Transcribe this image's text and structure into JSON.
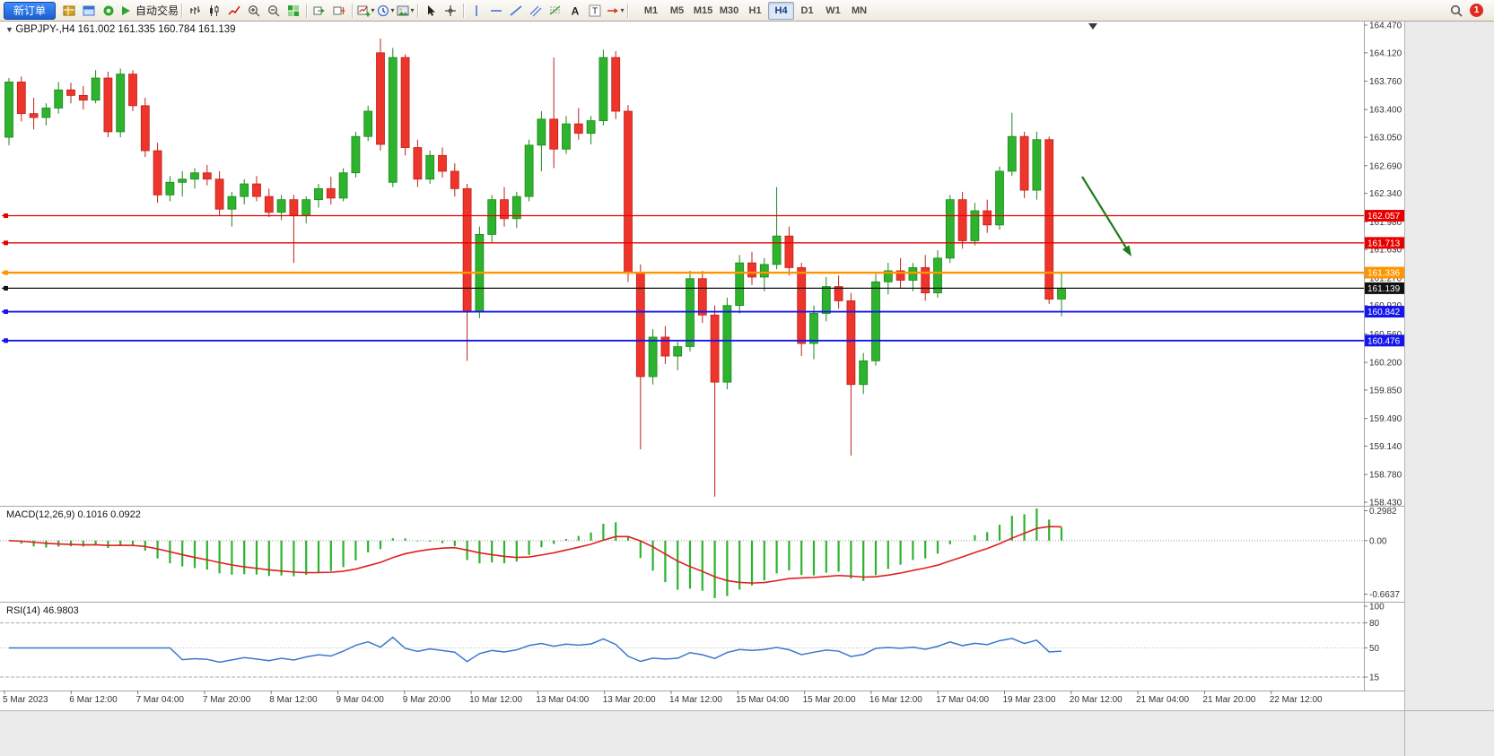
{
  "toolbar": {
    "new_order_label": "新订单",
    "auto_trading_label": "自动交易",
    "notification_count": "1",
    "buttons": [
      {
        "kind": "pill",
        "name": "new-order-button",
        "label": "新订单"
      },
      {
        "kind": "icon",
        "name": "market-watch-button",
        "icon": "market-watch-icon"
      },
      {
        "kind": "icon",
        "name": "data-window-button",
        "icon": "data-window-icon"
      },
      {
        "kind": "icon",
        "name": "navigator-button",
        "icon": "navigator-icon"
      },
      {
        "kind": "icon-label",
        "name": "auto-trading-button",
        "icon": "play-icon",
        "label": "自动交易"
      },
      {
        "kind": "sep"
      },
      {
        "kind": "icon",
        "name": "bar-chart-button",
        "icon": "bar-chart-icon"
      },
      {
        "kind": "icon",
        "name": "candlestick-chart-button",
        "icon": "candlestick-icon"
      },
      {
        "kind": "icon",
        "name": "line-chart-button",
        "icon": "line-chart-icon"
      },
      {
        "kind": "icon",
        "name": "zoom-in-button",
        "icon": "zoom-in-icon"
      },
      {
        "kind": "icon",
        "name": "zoom-out-button",
        "icon": "zoom-out-icon"
      },
      {
        "kind": "icon",
        "name": "tile-windows-button",
        "icon": "tile-windows-icon"
      },
      {
        "kind": "sep"
      },
      {
        "kind": "icon",
        "name": "auto-scroll-button",
        "icon": "auto-scroll-icon"
      },
      {
        "kind": "icon",
        "name": "chart-shift-button",
        "icon": "chart-shift-icon"
      },
      {
        "kind": "sep"
      },
      {
        "kind": "icon",
        "name": "new-chart-button",
        "icon": "chart-plus-icon",
        "caret": true
      },
      {
        "kind": "icon",
        "name": "periods-button",
        "icon": "clock-icon",
        "caret": true
      },
      {
        "kind": "icon",
        "name": "templates-button",
        "icon": "template-icon",
        "caret": true
      },
      {
        "kind": "sep"
      },
      {
        "kind": "icon",
        "name": "cursor-button",
        "icon": "cursor-icon"
      },
      {
        "kind": "icon",
        "name": "crosshair-button",
        "icon": "crosshair-icon"
      },
      {
        "kind": "sep"
      },
      {
        "kind": "icon",
        "name": "vertical-line-button",
        "icon": "vertical-line-icon"
      },
      {
        "kind": "icon",
        "name": "horizontal-line-button",
        "icon": "horizontal-line-icon"
      },
      {
        "kind": "icon",
        "name": "trendline-button",
        "icon": "trendline-icon"
      },
      {
        "kind": "icon",
        "name": "channel-button",
        "icon": "channel-icon"
      },
      {
        "kind": "icon",
        "name": "fibonacci-button",
        "icon": "fibonacci-icon"
      },
      {
        "kind": "icon",
        "name": "text-button",
        "icon": "text-a-icon"
      },
      {
        "kind": "icon",
        "name": "text-label-button",
        "icon": "text-label-icon"
      },
      {
        "kind": "icon",
        "name": "shapes-button",
        "icon": "arrows-icon",
        "caret": true
      },
      {
        "kind": "sep"
      }
    ],
    "timeframes": [
      {
        "label": "M1"
      },
      {
        "label": "M5"
      },
      {
        "label": "M15"
      },
      {
        "label": "M30"
      },
      {
        "label": "H1"
      },
      {
        "label": "H4",
        "active": true
      },
      {
        "label": "D1"
      },
      {
        "label": "W1"
      },
      {
        "label": "MN"
      }
    ]
  },
  "chart": {
    "symbol_header": "GBPJPY-,H4 161.002 161.335 160.784 161.139"
  },
  "chart_data": {
    "type": "candlestick",
    "symbol": "GBPJPY-",
    "timeframe": "H4",
    "ohlc_current": {
      "open": 161.002,
      "high": 161.335,
      "low": 160.784,
      "close": 161.139
    },
    "price_axis_range": [
      158.43,
      164.47
    ],
    "price_axis_labels": [
      "164.470",
      "164.120",
      "163.760",
      "163.400",
      "163.050",
      "162.690",
      "162.340",
      "161.980",
      "161.630",
      "161.270",
      "160.920",
      "160.560",
      "160.200",
      "159.850",
      "159.490",
      "159.140",
      "158.780",
      "158.430"
    ],
    "hlines": [
      {
        "price": 162.057,
        "color": "#e80000",
        "lw": 1.3
      },
      {
        "price": 161.713,
        "color": "#e80000",
        "lw": 1.3
      },
      {
        "price": 161.336,
        "color": "#ff9500",
        "lw": 2.4
      },
      {
        "price": 161.139,
        "color": "#111111",
        "lw": 1.2
      },
      {
        "price": 160.842,
        "color": "#1515ee",
        "lw": 1.8
      },
      {
        "price": 160.476,
        "color": "#1515ee",
        "lw": 1.8
      }
    ],
    "time_axis_labels": [
      "5 Mar 2023",
      "6 Mar 12:00",
      "7 Mar 04:00",
      "7 Mar 20:00",
      "8 Mar 12:00",
      "9 Mar 04:00",
      "9 Mar 20:00",
      "10 Mar 12:00",
      "13 Mar 04:00",
      "13 Mar 20:00",
      "14 Mar 12:00",
      "15 Mar 04:00",
      "15 Mar 20:00",
      "16 Mar 12:00",
      "17 Mar 04:00",
      "19 Mar 23:00",
      "20 Mar 12:00",
      "21 Mar 04:00",
      "21 Mar 20:00",
      "22 Mar 12:00"
    ],
    "candles": [
      [
        163.05,
        163.8,
        162.95,
        163.75
      ],
      [
        163.75,
        163.82,
        163.25,
        163.35
      ],
      [
        163.35,
        163.55,
        163.15,
        163.3
      ],
      [
        163.3,
        163.48,
        163.2,
        163.42
      ],
      [
        163.42,
        163.75,
        163.35,
        163.65
      ],
      [
        163.65,
        163.74,
        163.48,
        163.58
      ],
      [
        163.58,
        163.7,
        163.4,
        163.52
      ],
      [
        163.52,
        163.9,
        163.48,
        163.8
      ],
      [
        163.8,
        163.88,
        163.05,
        163.12
      ],
      [
        163.12,
        163.92,
        163.05,
        163.85
      ],
      [
        163.85,
        163.9,
        163.38,
        163.45
      ],
      [
        163.45,
        163.55,
        162.8,
        162.88
      ],
      [
        162.88,
        162.98,
        162.22,
        162.32
      ],
      [
        162.32,
        162.56,
        162.24,
        162.48
      ],
      [
        162.48,
        162.62,
        162.3,
        162.52
      ],
      [
        162.52,
        162.66,
        162.4,
        162.6
      ],
      [
        162.6,
        162.7,
        162.44,
        162.52
      ],
      [
        162.52,
        162.62,
        162.06,
        162.14
      ],
      [
        162.14,
        162.36,
        161.92,
        162.3
      ],
      [
        162.3,
        162.52,
        162.2,
        162.46
      ],
      [
        162.46,
        162.56,
        162.24,
        162.3
      ],
      [
        162.3,
        162.4,
        162.04,
        162.1
      ],
      [
        162.1,
        162.32,
        162.0,
        162.26
      ],
      [
        162.26,
        162.32,
        161.46,
        162.06
      ],
      [
        162.06,
        162.3,
        161.96,
        162.26
      ],
      [
        162.26,
        162.46,
        162.16,
        162.4
      ],
      [
        162.4,
        162.55,
        162.2,
        162.28
      ],
      [
        162.28,
        162.66,
        162.24,
        162.6
      ],
      [
        162.6,
        163.12,
        162.54,
        163.06
      ],
      [
        163.06,
        163.45,
        163.0,
        163.38
      ],
      [
        164.12,
        164.3,
        162.88,
        162.96
      ],
      [
        162.48,
        164.18,
        162.42,
        164.06
      ],
      [
        164.06,
        164.1,
        162.82,
        162.92
      ],
      [
        162.92,
        163.02,
        162.42,
        162.52
      ],
      [
        162.52,
        162.88,
        162.46,
        162.82
      ],
      [
        162.82,
        162.92,
        162.54,
        162.62
      ],
      [
        162.62,
        162.72,
        162.3,
        162.4
      ],
      [
        162.4,
        162.46,
        160.22,
        160.85
      ],
      [
        160.85,
        161.92,
        160.76,
        161.82
      ],
      [
        161.82,
        162.32,
        161.72,
        162.26
      ],
      [
        162.26,
        162.42,
        161.92,
        162.02
      ],
      [
        162.02,
        162.36,
        161.9,
        162.3
      ],
      [
        162.3,
        163.02,
        162.24,
        162.95
      ],
      [
        162.95,
        163.38,
        162.62,
        163.28
      ],
      [
        163.28,
        164.06,
        162.66,
        162.9
      ],
      [
        162.9,
        163.32,
        162.84,
        163.22
      ],
      [
        163.22,
        163.42,
        163.02,
        163.1
      ],
      [
        163.1,
        163.32,
        162.96,
        163.26
      ],
      [
        163.26,
        164.16,
        163.2,
        164.06
      ],
      [
        164.06,
        164.14,
        163.28,
        163.38
      ],
      [
        163.38,
        163.46,
        161.22,
        161.34
      ],
      [
        161.34,
        161.44,
        159.1,
        160.02
      ],
      [
        160.02,
        160.62,
        159.92,
        160.52
      ],
      [
        160.52,
        160.66,
        160.18,
        160.28
      ],
      [
        160.28,
        160.46,
        160.1,
        160.4
      ],
      [
        160.4,
        161.36,
        160.34,
        161.26
      ],
      [
        161.26,
        161.36,
        160.7,
        160.8
      ],
      [
        160.8,
        160.92,
        158.5,
        159.95
      ],
      [
        159.95,
        161.02,
        159.86,
        160.92
      ],
      [
        160.92,
        161.56,
        160.82,
        161.46
      ],
      [
        161.46,
        161.6,
        161.18,
        161.28
      ],
      [
        161.28,
        161.52,
        161.1,
        161.44
      ],
      [
        161.44,
        162.42,
        161.38,
        161.8
      ],
      [
        161.8,
        161.92,
        161.3,
        161.4
      ],
      [
        161.4,
        161.46,
        160.28,
        160.44
      ],
      [
        160.44,
        160.92,
        160.24,
        160.82
      ],
      [
        160.82,
        161.28,
        160.72,
        161.16
      ],
      [
        161.16,
        161.3,
        160.88,
        160.98
      ],
      [
        160.98,
        161.08,
        159.02,
        159.92
      ],
      [
        159.92,
        160.32,
        159.8,
        160.22
      ],
      [
        160.22,
        161.32,
        160.16,
        161.22
      ],
      [
        161.22,
        161.46,
        161.06,
        161.36
      ],
      [
        161.36,
        161.52,
        161.14,
        161.24
      ],
      [
        161.24,
        161.46,
        161.1,
        161.4
      ],
      [
        161.4,
        161.56,
        160.98,
        161.08
      ],
      [
        161.08,
        161.62,
        161.02,
        161.52
      ],
      [
        161.52,
        162.32,
        161.46,
        162.26
      ],
      [
        162.26,
        162.36,
        161.64,
        161.74
      ],
      [
        161.74,
        162.22,
        161.68,
        162.12
      ],
      [
        162.12,
        162.26,
        161.84,
        161.94
      ],
      [
        161.94,
        162.68,
        161.88,
        162.62
      ],
      [
        162.62,
        163.36,
        162.56,
        163.06
      ],
      [
        163.06,
        163.12,
        162.28,
        162.38
      ],
      [
        162.38,
        163.12,
        162.26,
        163.02
      ],
      [
        163.02,
        163.06,
        160.94,
        161.0
      ],
      [
        161.002,
        161.335,
        160.784,
        161.139
      ]
    ],
    "colors": {
      "up": "#2db32d",
      "down": "#ee352c",
      "macd_hist": "#2db32d",
      "macd_signal": "#e02020",
      "rsi_line": "#3b77cc"
    },
    "macd": {
      "label": "MACD(12,26,9) 0.1016 0.0922",
      "params": [
        12,
        26,
        9
      ],
      "main_value": 0.1016,
      "signal_value": 0.0922,
      "axis_max": "0.2982",
      "axis_zero": "0.00",
      "axis_min": "-0.6637"
    },
    "rsi": {
      "label": "RSI(14) 46.9803",
      "period": 14,
      "value": 46.9803,
      "axis_labels": [
        "100",
        "80",
        "50",
        "15"
      ],
      "levels_dashed": [
        80,
        15
      ],
      "level_dotted": 50
    },
    "annotation_arrow": {
      "color": "#1e7a1e",
      "from": [
        1206,
        197
      ],
      "to": [
        1261,
        286
      ]
    }
  }
}
